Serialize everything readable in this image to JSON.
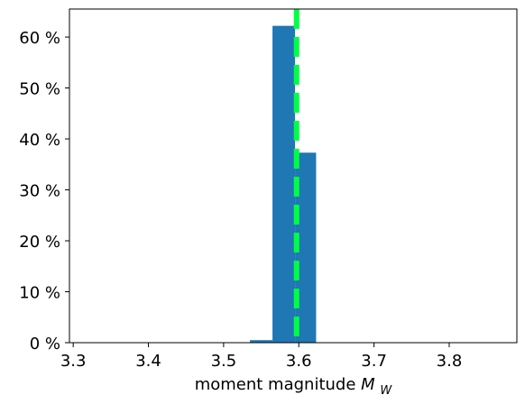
{
  "chart_data": {
    "type": "bar",
    "subtype": "histogram",
    "title": "",
    "xlabel": "moment magnitude",
    "xlabel_symbol": "M",
    "xlabel_subscript": "W",
    "ylabel": "",
    "xlim": [
      3.295,
      3.89
    ],
    "ylim": [
      0,
      65.5
    ],
    "x_ticks": [
      3.3,
      3.4,
      3.5,
      3.6,
      3.7,
      3.8
    ],
    "x_tick_labels": [
      "3.3",
      "3.4",
      "3.5",
      "3.6",
      "3.7",
      "3.8"
    ],
    "y_ticks": [
      0,
      10,
      20,
      30,
      40,
      50,
      60
    ],
    "y_tick_labels": [
      "0 %",
      "10 %",
      "20 %",
      "30 %",
      "40 %",
      "50 %",
      "60 %"
    ],
    "bins": [
      {
        "x0": 3.535,
        "x1": 3.565,
        "value": 0.5
      },
      {
        "x0": 3.565,
        "x1": 3.595,
        "value": 62.2
      },
      {
        "x0": 3.595,
        "x1": 3.623,
        "value": 37.3
      }
    ],
    "bar_color": "#1f77b4",
    "reference_line": {
      "x": 3.597,
      "color": "#00ff44",
      "style": "dashed"
    },
    "grid": false,
    "legend": "none"
  }
}
